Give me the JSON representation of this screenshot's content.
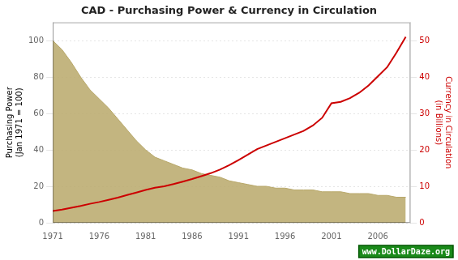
{
  "chart_data": {
    "type": "line",
    "title": "CAD - Purchasing Power & Currency in Circulation",
    "x": [
      1971,
      1972,
      1973,
      1974,
      1975,
      1976,
      1977,
      1978,
      1979,
      1980,
      1981,
      1982,
      1983,
      1984,
      1985,
      1986,
      1987,
      1988,
      1989,
      1990,
      1991,
      1992,
      1993,
      1994,
      1995,
      1996,
      1997,
      1998,
      1999,
      2000,
      2001,
      2002,
      2003,
      2004,
      2005,
      2006,
      2007,
      2008,
      2009
    ],
    "xlim": [
      1971,
      2009.5
    ],
    "xticks": [
      1971,
      1976,
      1981,
      1986,
      1991,
      1996,
      2001,
      2006
    ],
    "ylabel": "Purchasing Power\n(Jan 1971 = 100)",
    "ylim": [
      0,
      110
    ],
    "yticks": [
      0,
      20,
      40,
      60,
      80,
      100
    ],
    "y2label": "Currency in Circulation\n(in Billions)",
    "y2lim": [
      0,
      55
    ],
    "y2ticks": [
      0,
      10,
      20,
      30,
      40,
      50
    ],
    "grid": true,
    "series": [
      {
        "type": "area",
        "color": "#b8a86a",
        "values": [
          100,
          95,
          88,
          80,
          73,
          68,
          63,
          57,
          51,
          45,
          40,
          36,
          34,
          32,
          30,
          29,
          27,
          26,
          25,
          23,
          22,
          21,
          20,
          20,
          19,
          19,
          18,
          18,
          18,
          17,
          17,
          17,
          16,
          16,
          16,
          15,
          15,
          14,
          14
        ]
      },
      {
        "type": "line",
        "color": "#cc0000",
        "axis": "y2",
        "values": [
          3.2,
          3.6,
          4.1,
          4.6,
          5.2,
          5.7,
          6.3,
          6.9,
          7.6,
          8.3,
          9.0,
          9.6,
          10.0,
          10.6,
          11.3,
          12.0,
          12.8,
          13.6,
          14.6,
          15.8,
          17.2,
          18.7,
          20.2,
          21.2,
          22.2,
          23.2,
          24.2,
          25.2,
          26.7,
          28.8,
          32.8,
          33.2,
          34.2,
          35.7,
          37.7,
          40.2,
          42.7,
          46.7,
          51.0
        ]
      }
    ],
    "annotations": [
      {
        "text": "www.DollarDaze.org",
        "color": "#1a8a1a"
      }
    ]
  }
}
